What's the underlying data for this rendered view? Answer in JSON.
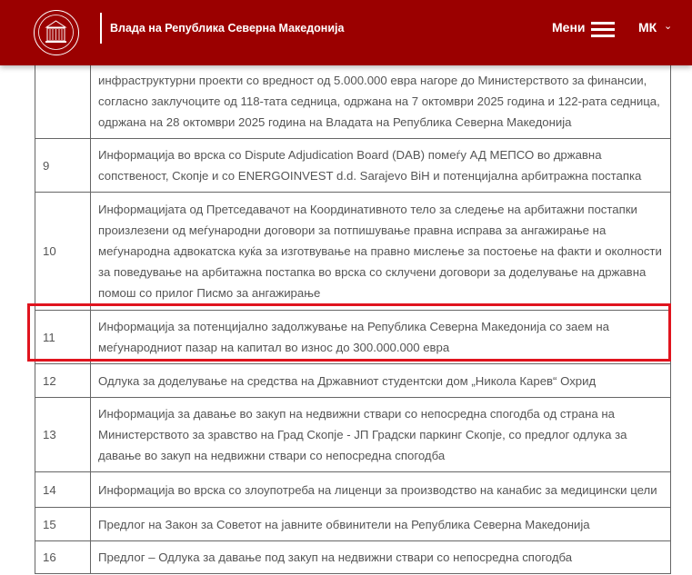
{
  "header": {
    "title": "Влада на Република Северна Македонија",
    "menu_label": "Мени",
    "language": "МК",
    "icons": {
      "logo": "government-building-emblem",
      "menu": "hamburger-icon",
      "language": "chevron-down-icon"
    }
  },
  "table": {
    "rows": [
      {
        "number": "",
        "text": "инфраструктурни проекти со вредност од 5.000.000 евра нагоре до Министерството за финансии, согласно заклучоците од 118-тата седница, одржана на 7 октомври 2025 година и 122-рата седница, одржана на 28 октомври 2025 година на Владата на Република Северна Македонија"
      },
      {
        "number": "9",
        "text": "Информација во врска со Dispute Adjudication Board (DAB) помеѓу АД МЕПСО во државна сопственост, Скопје и со ENERGOINVEST d.d. Sarajevo BiH и потенцијална арбитражна постапка"
      },
      {
        "number": "10",
        "text": "Информацијата од Претседавачот на Координативното тело за следење на арбитажни постапки произлезени од меѓународни договори за потпишување правна исправа за ангажирање на меѓународна адвокатска куќа за изготвување на правно мислење за постоење на факти и околности за поведување на арбитажна постапка во врска со склучени договори за доделување на државна помош со прилог Писмо за ангажирање"
      },
      {
        "number": "11",
        "text": "Информација за потенцијално задолжување на Република Северна Македонија со заем на меѓународниот пазар на капитал во износ до 300.000.000 евра",
        "highlighted": true
      },
      {
        "number": "12",
        "text": "Одлука за доделување на средства на Државниот студентски дом „Никола Карев“ Охрид"
      },
      {
        "number": "13",
        "text": "Информација за давање во закуп на недвижни ствари со непосредна спогодба од страна на Министерството за зравство на Град Скопје - ЈП Градски паркинг Скопје, со предлог одлука за давање во закуп на недвижни ствари со непосредна спогодба"
      },
      {
        "number": "14",
        "text": "Информација во врска со злоупотреба на лиценци за производство на канабис за медицински цели"
      },
      {
        "number": "15",
        "text": "Предлог на Закон за Советот на јавните обвинители на Република Северна Македонија"
      },
      {
        "number": "16",
        "text": "Предлог – Одлука за давање под закуп на недвижни ствари со непосредна спогодба"
      }
    ]
  },
  "colors": {
    "header": "#9b0000",
    "highlight": "#e0141e"
  }
}
